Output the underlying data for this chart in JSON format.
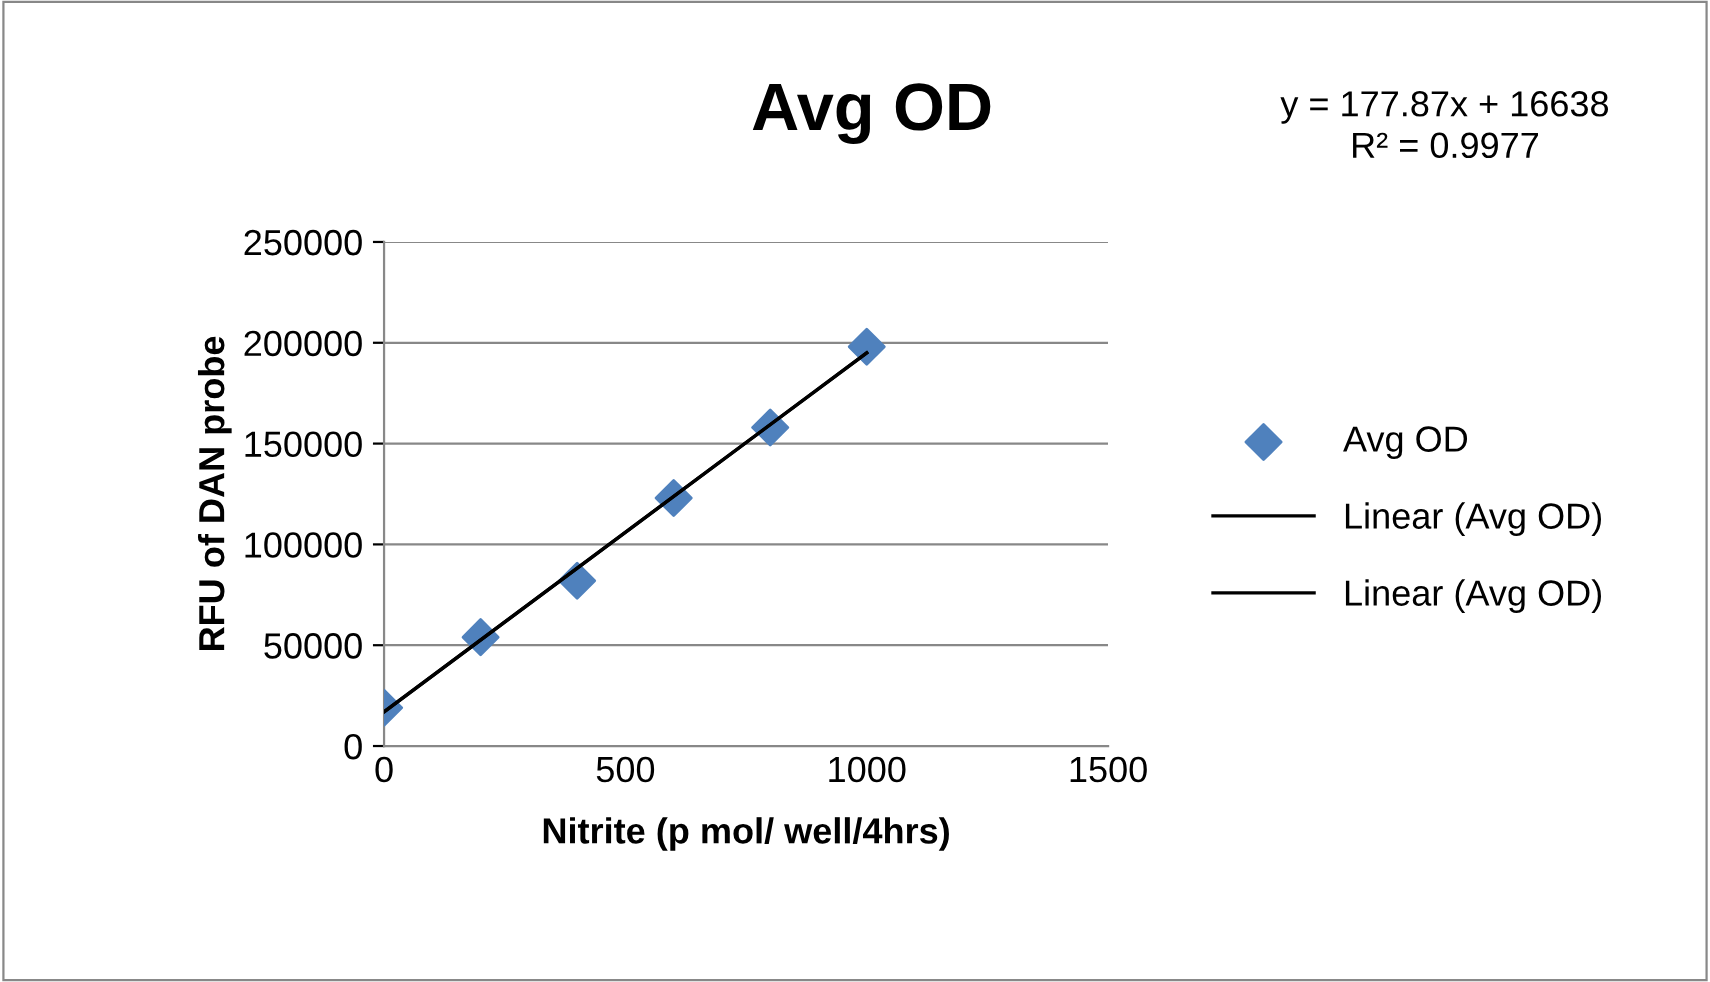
{
  "chart_data": {
    "type": "scatter",
    "title": "Avg OD",
    "xlabel": "Nitrite (p mol/ well/4hrs)",
    "ylabel": "RFU of DAN probe",
    "annotations": [
      "y = 177.87x + 16638\nR² = 0.9977"
    ],
    "series": [
      {
        "name": "Avg OD",
        "color": "#4f81bd",
        "marker": "diamond",
        "x": [
          0,
          200,
          400,
          600,
          800,
          1000
        ],
        "values": [
          19000,
          54000,
          82000,
          123000,
          158000,
          198000
        ]
      },
      {
        "name": "Linear (Avg OD)",
        "type": "line",
        "color": "#000000",
        "marker": "none",
        "line_style": "solid",
        "x": [
          0,
          1000
        ],
        "values": [
          17000,
          195000
        ]
      },
      {
        "name": "Linear (Avg OD)",
        "type": "line",
        "color": "#000000",
        "marker": "none",
        "line_style": "solid",
        "x": [
          0,
          1000
        ],
        "values": [
          17000,
          195000
        ]
      }
    ],
    "xlim": [
      0,
      1500
    ],
    "xticks": [
      0,
      500,
      1000,
      1500
    ],
    "ylim": [
      0,
      250000
    ],
    "yticks": [
      0,
      50000,
      100000,
      150000,
      200000,
      250000
    ],
    "grid": "y",
    "legend": "right"
  }
}
